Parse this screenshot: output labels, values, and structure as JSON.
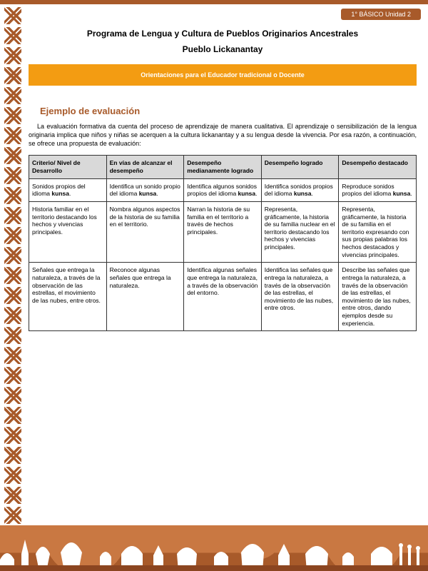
{
  "colors": {
    "brand": "#a85a2a",
    "accent": "#f39c12",
    "tableHeader": "#d9d9d9",
    "text": "#000000",
    "background": "#ffffff"
  },
  "header": {
    "tab": "1° BÁSICO Unidad 2",
    "title1": "Programa de Lengua y Cultura de Pueblos Originarios Ancestrales",
    "title2": "Pueblo Lickanantay",
    "band": "Orientaciones para el Educador tradicional o Docente"
  },
  "section": {
    "title": "Ejemplo de evaluación",
    "intro": "La evaluación formativa da cuenta del proceso de aprendizaje de manera cualitativa. El aprendizaje o sensibilización de la lengua originaria implica que niños y niñas se acerquen a la cultura lickanantay y a su lengua desde la vivencia. Por esa razón, a continuación, se ofrece una propuesta de evaluación:"
  },
  "table": {
    "columns": [
      "Criterio/ Nivel de Desarrollo",
      "En vías de alcanzar el desempeño",
      "Desempeño medianamente logrado",
      "Desempeño logrado",
      "Desempeño destacado"
    ],
    "colWidths": [
      "20%",
      "20%",
      "20%",
      "20%",
      "20%"
    ],
    "rows": [
      [
        "Sonidos propios del idioma <b>kunsa</b>.",
        "Identifica un sonido propio del idioma <b>kunsa</b>.",
        "Identifica algunos sonidos propios del idioma <b>kunsa</b>.",
        "Identifica sonidos propios del idioma <b>kunsa</b>.",
        "Reproduce sonidos propios del idioma <b>kunsa</b>."
      ],
      [
        "Historia familiar en el territorio destacando los hechos y vivencias principales.",
        "Nombra algunos aspectos de la historia de su familia en el territorio.",
        "Narran la historia de su familia en el territorio a través de hechos principales.",
        "Representa, gráficamente, la historia de su familia nuclear en el territorio destacando los hechos y vivencias principales.",
        "Representa, gráficamente, la historia de su familia en el territorio expresando con sus propias palabras los hechos destacados y vivencias principales."
      ],
      [
        "Señales que entrega la naturaleza, a través de la observación de las estrellas, el movimiento de las nubes, entre otros.",
        "Reconoce algunas señales que entrega la naturaleza.",
        "Identifica algunas señales que entrega la naturaleza, a través de la observación del entorno.",
        "Identifica las señales que entrega la naturaleza, a través de la observación de las estrellas, el movimiento de las nubes, entre otros.",
        "Describe las señales que entrega la naturaleza, a través de la observación de las estrellas, el movimiento de las nubes, entre otros, dando ejemplos desde su experiencia."
      ]
    ]
  }
}
